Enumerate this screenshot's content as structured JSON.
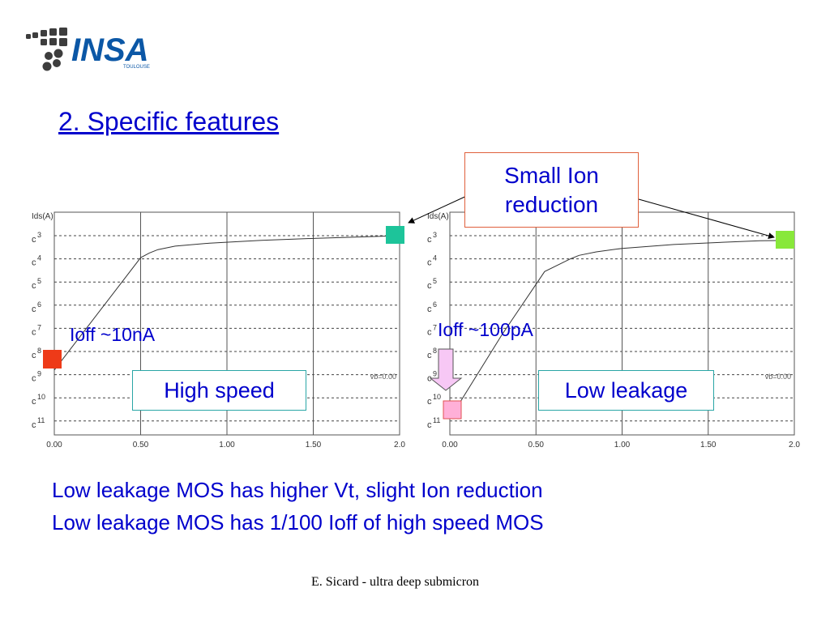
{
  "header": {
    "logo_text": "INSA",
    "logo_subtext": "TOULOUSE",
    "title": "2. Specific features"
  },
  "callouts": {
    "small_ion": [
      "Small Ion",
      "reduction"
    ],
    "high_speed": "High speed",
    "low_leakage": "Low leakage",
    "ioff_high_speed": "Ioff ~10nA",
    "ioff_low_leakage": "Ioff ~100pA"
  },
  "summary": {
    "line1": "Low leakage MOS has higher Vt, slight Ion reduction",
    "line2": "Low leakage MOS has 1/100 Ioff of high speed MOS"
  },
  "footer": "E. Sicard - ultra deep submicron",
  "colors": {
    "title_blue": "#0000cc",
    "ion_marker_left": "#1dc49a",
    "ion_marker_right": "#88e83a",
    "ioff_marker_left": "#ee3a18",
    "ioff_marker_right": "#ffb0d8",
    "down_arrow_fill": "#f7c8f5",
    "callout_border_ion": "#e0603c",
    "callout_border_type": "#2aa6a6"
  },
  "chart_data": [
    {
      "type": "line",
      "ylabel": "Ids(A)",
      "xlabel": "",
      "x_ticks": [
        "0.00",
        "0.50",
        "1.00",
        "1.50",
        "2.0"
      ],
      "y_ticks": [
        "3",
        "4",
        "5",
        "6",
        "7",
        "8",
        "9",
        "10",
        "11"
      ],
      "y_scale": "log",
      "grid": true,
      "annotation": "vb=0.00",
      "series": [
        {
          "x": [
            0.0,
            0.5,
            0.55,
            0.6,
            0.7,
            0.9,
            1.2,
            1.5,
            1.8,
            2.0
          ],
          "y": [
            -8.8,
            -3.95,
            -3.75,
            -3.6,
            -3.45,
            -3.32,
            -3.2,
            -3.12,
            -3.05,
            -3.0
          ]
        }
      ]
    },
    {
      "type": "line",
      "ylabel": "Ids(A)",
      "xlabel": "",
      "x_ticks": [
        "0.00",
        "0.50",
        "1.00",
        "1.50",
        "2.0"
      ],
      "y_ticks": [
        "3",
        "4",
        "5",
        "6",
        "7",
        "8",
        "9",
        "10",
        "11"
      ],
      "y_scale": "log",
      "grid": true,
      "annotation": "vb=0.00",
      "series": [
        {
          "x": [
            0.0,
            0.3,
            0.55,
            0.7,
            0.75,
            0.85,
            1.0,
            1.3,
            1.6,
            1.8,
            2.0
          ],
          "y": [
            -10.9,
            -7.3,
            -4.55,
            -4.0,
            -3.85,
            -3.7,
            -3.55,
            -3.38,
            -3.28,
            -3.22,
            -3.2
          ]
        }
      ]
    }
  ]
}
